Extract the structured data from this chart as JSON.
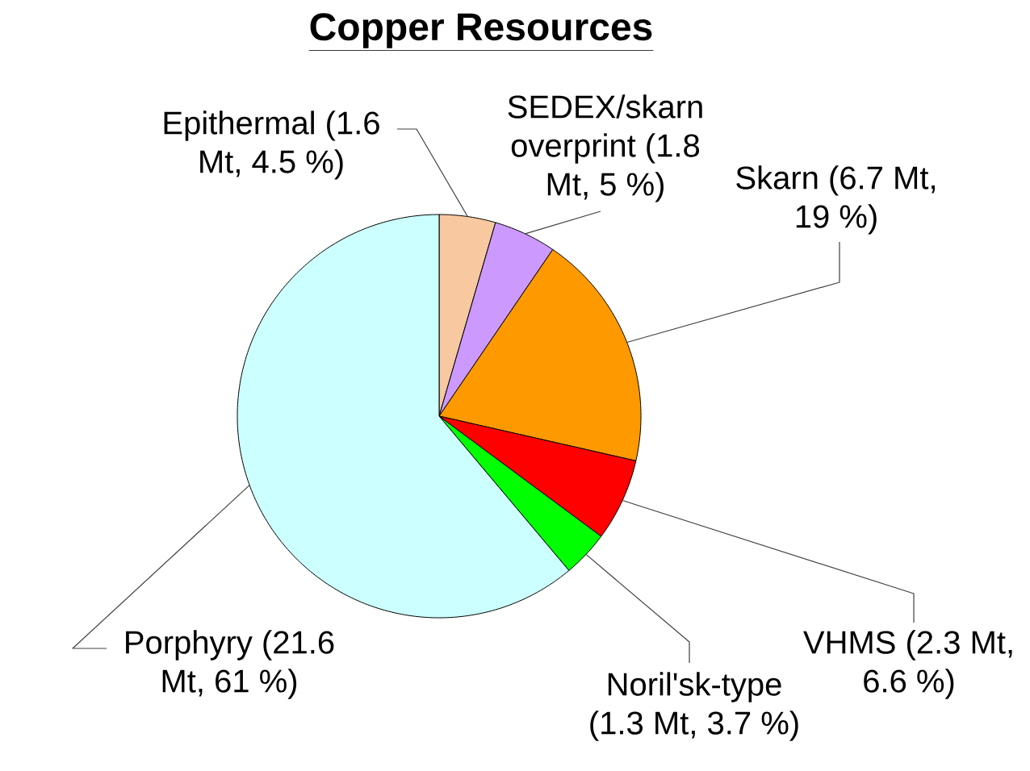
{
  "chart_data": {
    "type": "pie",
    "title": "Copper Resources",
    "categories": [
      "Epithermal (1.6 Mt, 4.5 %)",
      "SEDEX/skarn overprint (1.8 Mt, 5 %)",
      "Skarn (6.7 Mt, 19 %)",
      "VHMS (2.3 Mt, 6.6 %)",
      "Noril'sk-type (1.3 Mt, 3.7 %)",
      "Porphyry (21.6 Mt, 61 %)"
    ],
    "values": [
      4.5,
      5,
      19,
      6.6,
      3.7,
      61
    ],
    "colors": [
      "#f8c8a0",
      "#cc99ff",
      "#ff9900",
      "#ff0000",
      "#00ff00",
      "#ccffff"
    ]
  }
}
